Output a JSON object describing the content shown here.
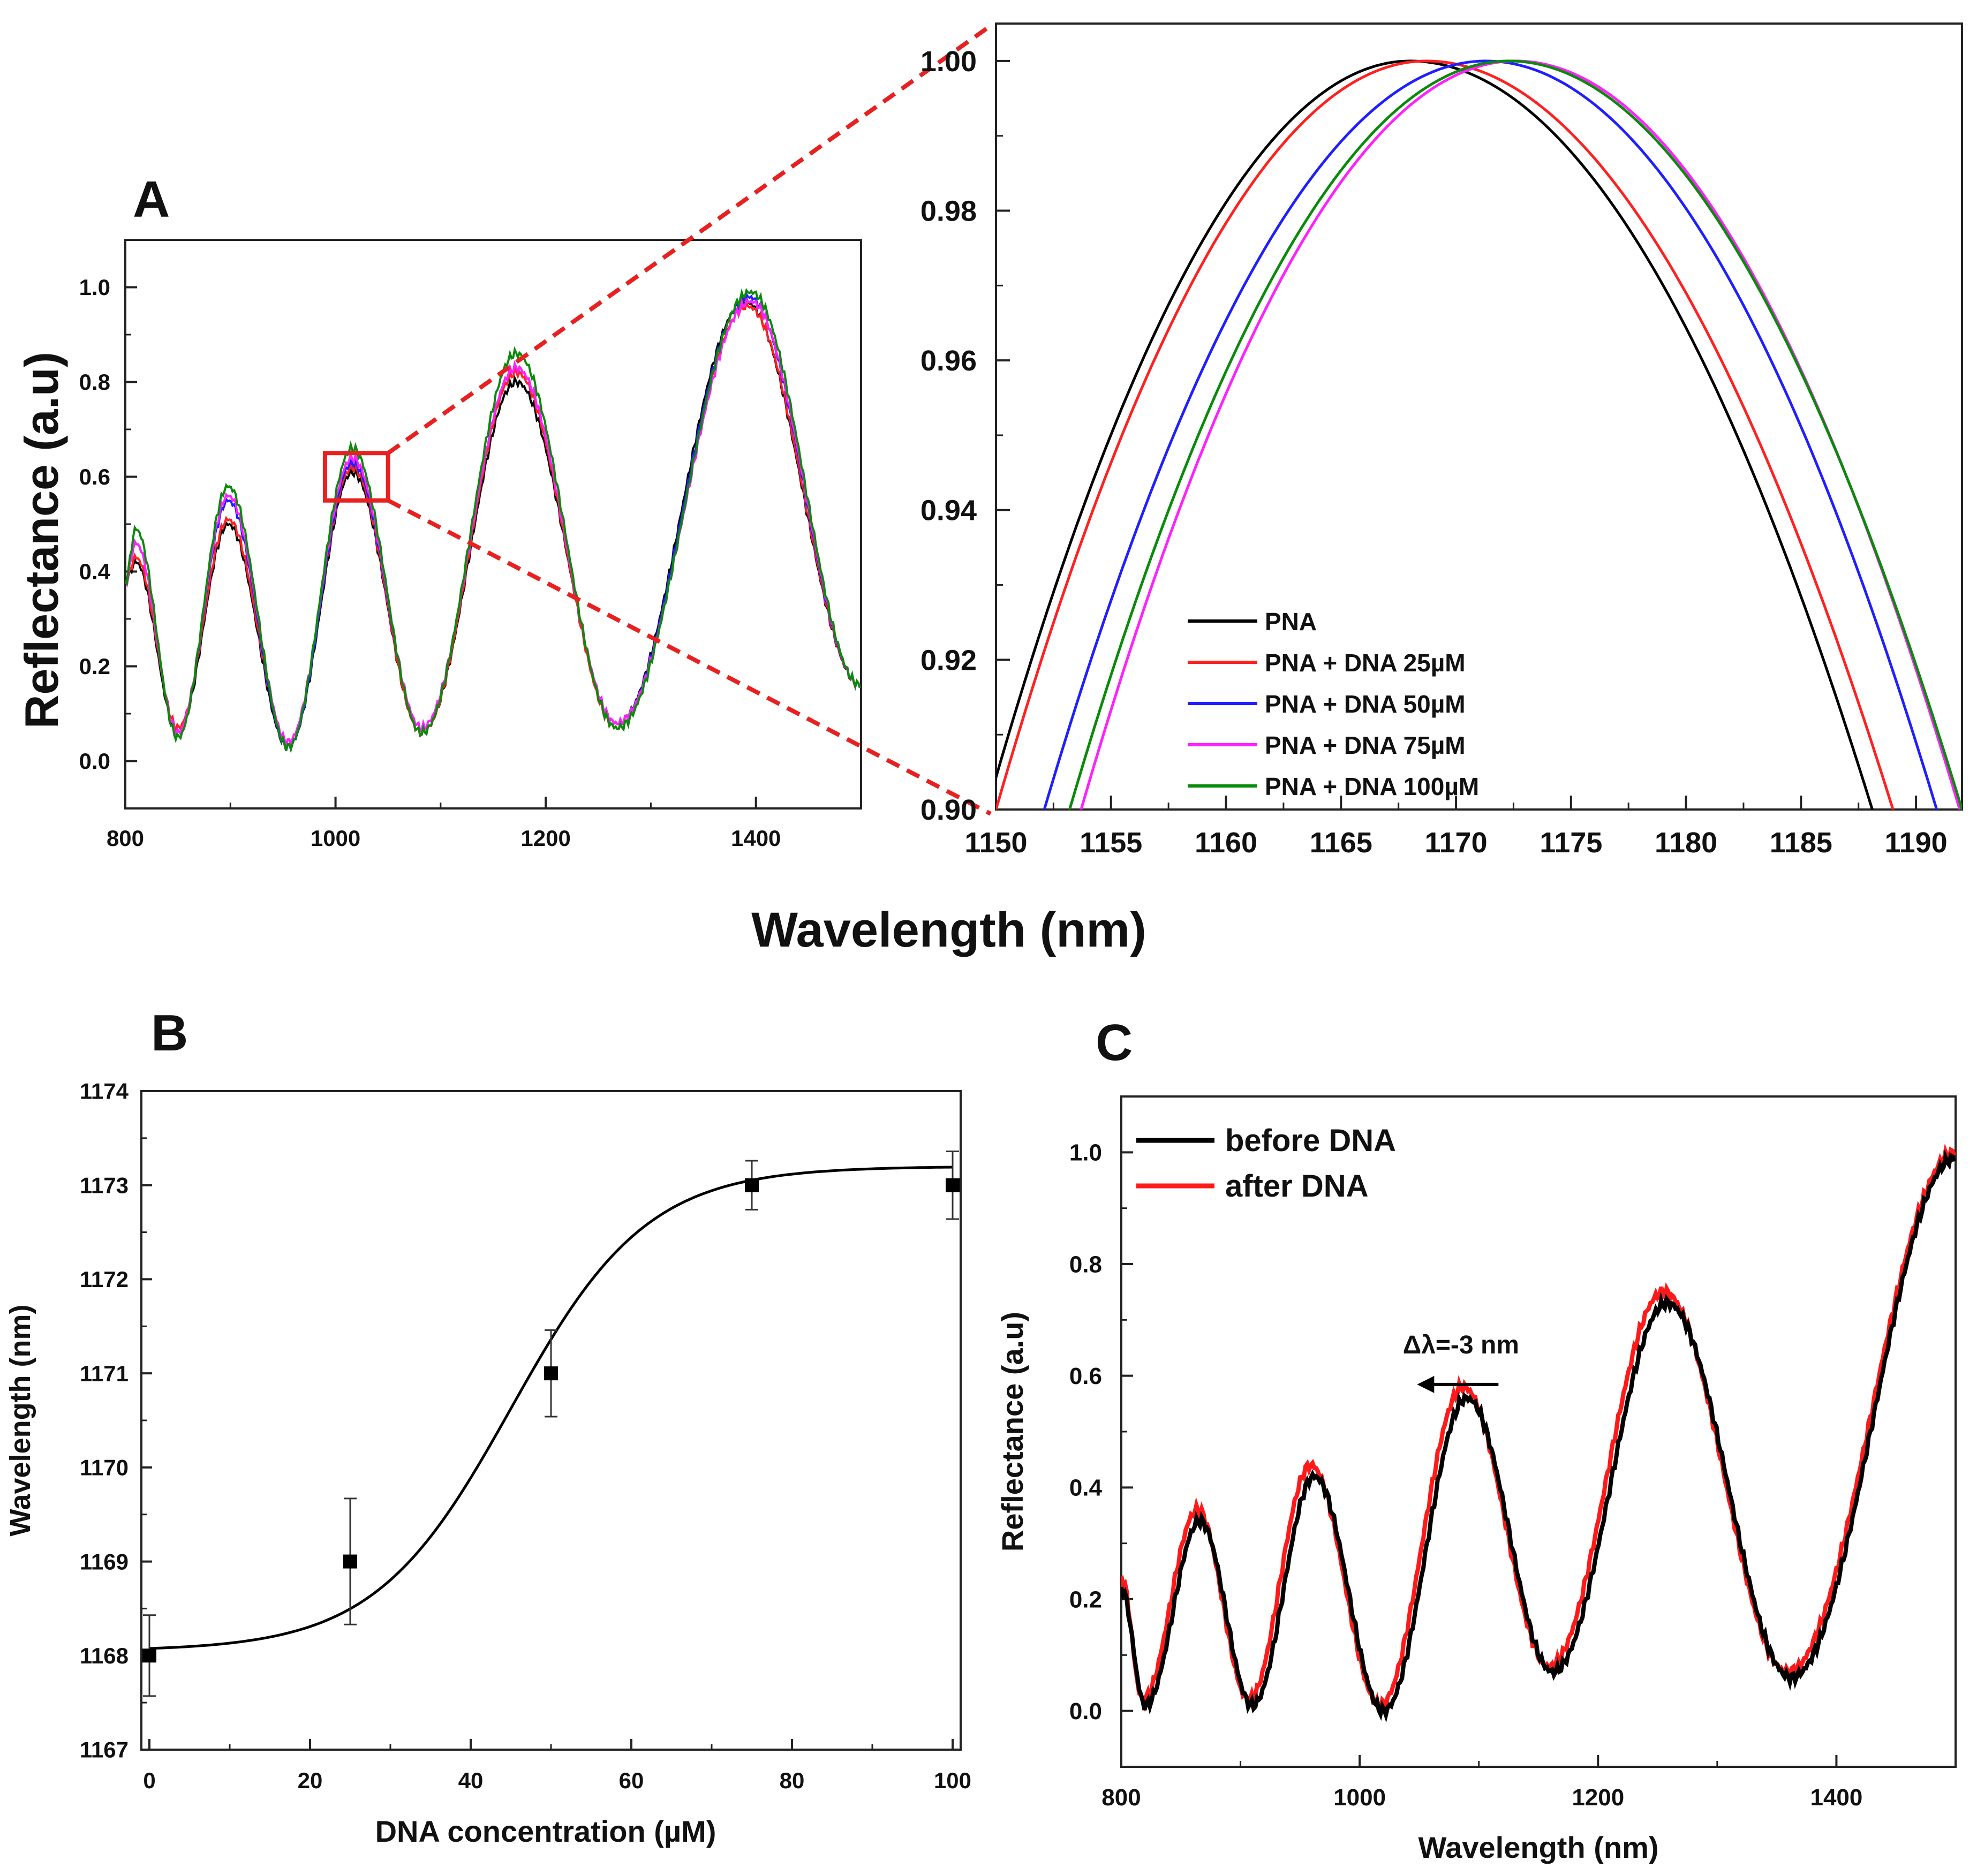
{
  "figure": {
    "colors": {
      "PNA": "#000000",
      "PNA + DNA 25µM": "#ff2020",
      "PNA + DNA 50µM": "#1f1fff",
      "PNA + DNA 75µM": "#ff20ff",
      "PNA + DNA 100µM": "#0a8a0a",
      "before DNA": "#000000",
      "after DNA": "#ff1a1a",
      "zoom_box": "#e82020"
    },
    "shared_xlabel_top": "Wavelength (nm)"
  },
  "chart_data": [
    {
      "id": "A-overview",
      "type": "line",
      "panel_label": "A",
      "xlabel": "",
      "ylabel": "Reflectance (a.u)",
      "xlim": [
        800,
        1500
      ],
      "ylim": [
        -0.1,
        1.1
      ],
      "xticks": [
        "800",
        "1000",
        "1200",
        "1400"
      ],
      "yticks": [
        "0.0",
        "0.2",
        "0.4",
        "0.6",
        "0.8",
        "1.0"
      ],
      "zoom_region": {
        "x": [
          990,
          1050
        ],
        "y": [
          0.55,
          0.65
        ]
      },
      "series": [
        {
          "name": "PNA",
          "peaks": [
            {
              "x": 810,
              "y": 0.42
            },
            {
              "x": 898,
              "y": 0.5
            },
            {
              "x": 1016,
              "y": 0.61
            },
            {
              "x": 1172,
              "y": 0.8
            },
            {
              "x": 1390,
              "y": 0.97
            }
          ],
          "valleys": [
            {
              "x": 850,
              "y": 0.06
            },
            {
              "x": 955,
              "y": 0.03
            },
            {
              "x": 1082,
              "y": 0.06
            },
            {
              "x": 1268,
              "y": 0.08
            }
          ]
        },
        {
          "name": "PNA + DNA 25µM",
          "peaks": [
            {
              "x": 810,
              "y": 0.43
            },
            {
              "x": 898,
              "y": 0.51
            },
            {
              "x": 1016,
              "y": 0.62
            },
            {
              "x": 1172,
              "y": 0.82
            },
            {
              "x": 1392,
              "y": 0.96
            }
          ],
          "valleys": [
            {
              "x": 850,
              "y": 0.07
            },
            {
              "x": 955,
              "y": 0.04
            },
            {
              "x": 1082,
              "y": 0.06
            },
            {
              "x": 1268,
              "y": 0.07
            }
          ]
        },
        {
          "name": "PNA + DNA 50µM",
          "peaks": [
            {
              "x": 810,
              "y": 0.46
            },
            {
              "x": 898,
              "y": 0.55
            },
            {
              "x": 1016,
              "y": 0.63
            },
            {
              "x": 1172,
              "y": 0.83
            },
            {
              "x": 1393,
              "y": 0.98
            }
          ],
          "valleys": [
            {
              "x": 850,
              "y": 0.06
            },
            {
              "x": 955,
              "y": 0.03
            },
            {
              "x": 1082,
              "y": 0.07
            },
            {
              "x": 1268,
              "y": 0.08
            }
          ]
        },
        {
          "name": "PNA + DNA 75µM",
          "peaks": [
            {
              "x": 810,
              "y": 0.46
            },
            {
              "x": 898,
              "y": 0.56
            },
            {
              "x": 1016,
              "y": 0.64
            },
            {
              "x": 1172,
              "y": 0.83
            },
            {
              "x": 1395,
              "y": 0.97
            }
          ],
          "valleys": [
            {
              "x": 850,
              "y": 0.06
            },
            {
              "x": 955,
              "y": 0.04
            },
            {
              "x": 1082,
              "y": 0.07
            },
            {
              "x": 1268,
              "y": 0.08
            }
          ]
        },
        {
          "name": "PNA + DNA 100µM",
          "peaks": [
            {
              "x": 810,
              "y": 0.49
            },
            {
              "x": 898,
              "y": 0.58
            },
            {
              "x": 1016,
              "y": 0.66
            },
            {
              "x": 1172,
              "y": 0.86
            },
            {
              "x": 1395,
              "y": 0.99
            }
          ],
          "valleys": [
            {
              "x": 850,
              "y": 0.05
            },
            {
              "x": 955,
              "y": 0.03
            },
            {
              "x": 1082,
              "y": 0.06
            },
            {
              "x": 1268,
              "y": 0.07
            }
          ]
        }
      ]
    },
    {
      "id": "A-zoom",
      "type": "line",
      "panel_label": "",
      "xlabel": "",
      "ylabel": "",
      "xlim": [
        1150,
        1192
      ],
      "ylim": [
        0.9,
        1.005
      ],
      "xticks": [
        "1150",
        "1155",
        "1160",
        "1165",
        "1170",
        "1175",
        "1180",
        "1185",
        "1190"
      ],
      "yticks": [
        "0.90",
        "0.92",
        "0.94",
        "0.96",
        "0.98",
        "1.00"
      ],
      "legend": {
        "position": "bottom-center",
        "labels": [
          "PNA",
          "PNA + DNA 25µM",
          "PNA + DNA 50µM",
          "PNA + DNA 75µM",
          "PNA + DNA 100µM"
        ]
      },
      "series": [
        {
          "name": "PNA",
          "peak_x": 1168.0,
          "peak_y": 1.0,
          "x_at_0_90": [
            1149.6,
            1188.1
          ]
        },
        {
          "name": "PNA + DNA 25µM",
          "peak_x": 1168.7,
          "peak_y": 1.0,
          "x_at_0_90": [
            1150.0,
            1189.0
          ]
        },
        {
          "name": "PNA + DNA 50µM",
          "peak_x": 1171.3,
          "peak_y": 1.0,
          "x_at_0_90": [
            1152.1,
            1190.9
          ]
        },
        {
          "name": "PNA + DNA 75µM",
          "peak_x": 1172.6,
          "peak_y": 1.0,
          "x_at_0_90": [
            1153.7,
            1191.9
          ]
        },
        {
          "name": "PNA + DNA 100µM",
          "peak_x": 1172.3,
          "peak_y": 1.0,
          "x_at_0_90": [
            1153.2,
            1192.0
          ]
        }
      ]
    },
    {
      "id": "B",
      "type": "scatter",
      "panel_label": "B",
      "xlabel": "DNA concentration (µM)",
      "ylabel": "Wavelength (nm)",
      "xlim": [
        -1,
        101
      ],
      "ylim": [
        1167,
        1174
      ],
      "xticks": [
        "0",
        "20",
        "40",
        "60",
        "80",
        "100"
      ],
      "yticks": [
        "1167",
        "1168",
        "1169",
        "1170",
        "1171",
        "1172",
        "1173",
        "1174"
      ],
      "points": [
        {
          "x": 0,
          "y": 1168,
          "err": 0.43
        },
        {
          "x": 25,
          "y": 1169,
          "err": 0.67
        },
        {
          "x": 50,
          "y": 1171,
          "err": 0.46
        },
        {
          "x": 75,
          "y": 1173,
          "err": 0.26
        },
        {
          "x": 100,
          "y": 1173,
          "err": 0.36
        }
      ],
      "fit": {
        "type": "sigmoid",
        "bottom": 1168.05,
        "top": 1173.2,
        "x0": 45,
        "dx": 8.5
      }
    },
    {
      "id": "C",
      "type": "line",
      "panel_label": "C",
      "xlabel": "Wavelength (nm)",
      "ylabel": "Reflectance (a.u)",
      "xlim": [
        800,
        1500
      ],
      "ylim": [
        -0.1,
        1.1
      ],
      "xticks": [
        "800",
        "1000",
        "1200",
        "1400"
      ],
      "yticks": [
        "0.0",
        "0.2",
        "0.4",
        "0.6",
        "0.8",
        "1.0"
      ],
      "legend": {
        "position": "top-left",
        "labels": [
          "before DNA",
          "after DNA"
        ]
      },
      "annotation": {
        "text": "Δλ=-3 nm",
        "arrow": "left",
        "x": 1085,
        "y": 0.64
      },
      "series": [
        {
          "name": "before DNA",
          "start": {
            "x": 800,
            "y": 0.22
          },
          "peaks": [
            {
              "x": 866,
              "y": 0.34
            },
            {
              "x": 962,
              "y": 0.42
            },
            {
              "x": 1090,
              "y": 0.56
            },
            {
              "x": 1258,
              "y": 0.73
            }
          ],
          "valleys": [
            {
              "x": 820,
              "y": 0.01
            },
            {
              "x": 910,
              "y": 0.01
            },
            {
              "x": 1020,
              "y": 0.0
            },
            {
              "x": 1162,
              "y": 0.07
            },
            {
              "x": 1362,
              "y": 0.06
            }
          ],
          "end": {
            "x": 1500,
            "y": 0.99
          }
        },
        {
          "name": "after DNA",
          "start": {
            "x": 800,
            "y": 0.24
          },
          "peaks": [
            {
              "x": 864,
              "y": 0.36
            },
            {
              "x": 959,
              "y": 0.44
            },
            {
              "x": 1087,
              "y": 0.58
            },
            {
              "x": 1255,
              "y": 0.75
            }
          ],
          "valleys": [
            {
              "x": 818,
              "y": 0.02
            },
            {
              "x": 907,
              "y": 0.02
            },
            {
              "x": 1017,
              "y": 0.01
            },
            {
              "x": 1159,
              "y": 0.08
            },
            {
              "x": 1359,
              "y": 0.07
            }
          ],
          "end": {
            "x": 1500,
            "y": 1.0
          }
        }
      ]
    }
  ]
}
